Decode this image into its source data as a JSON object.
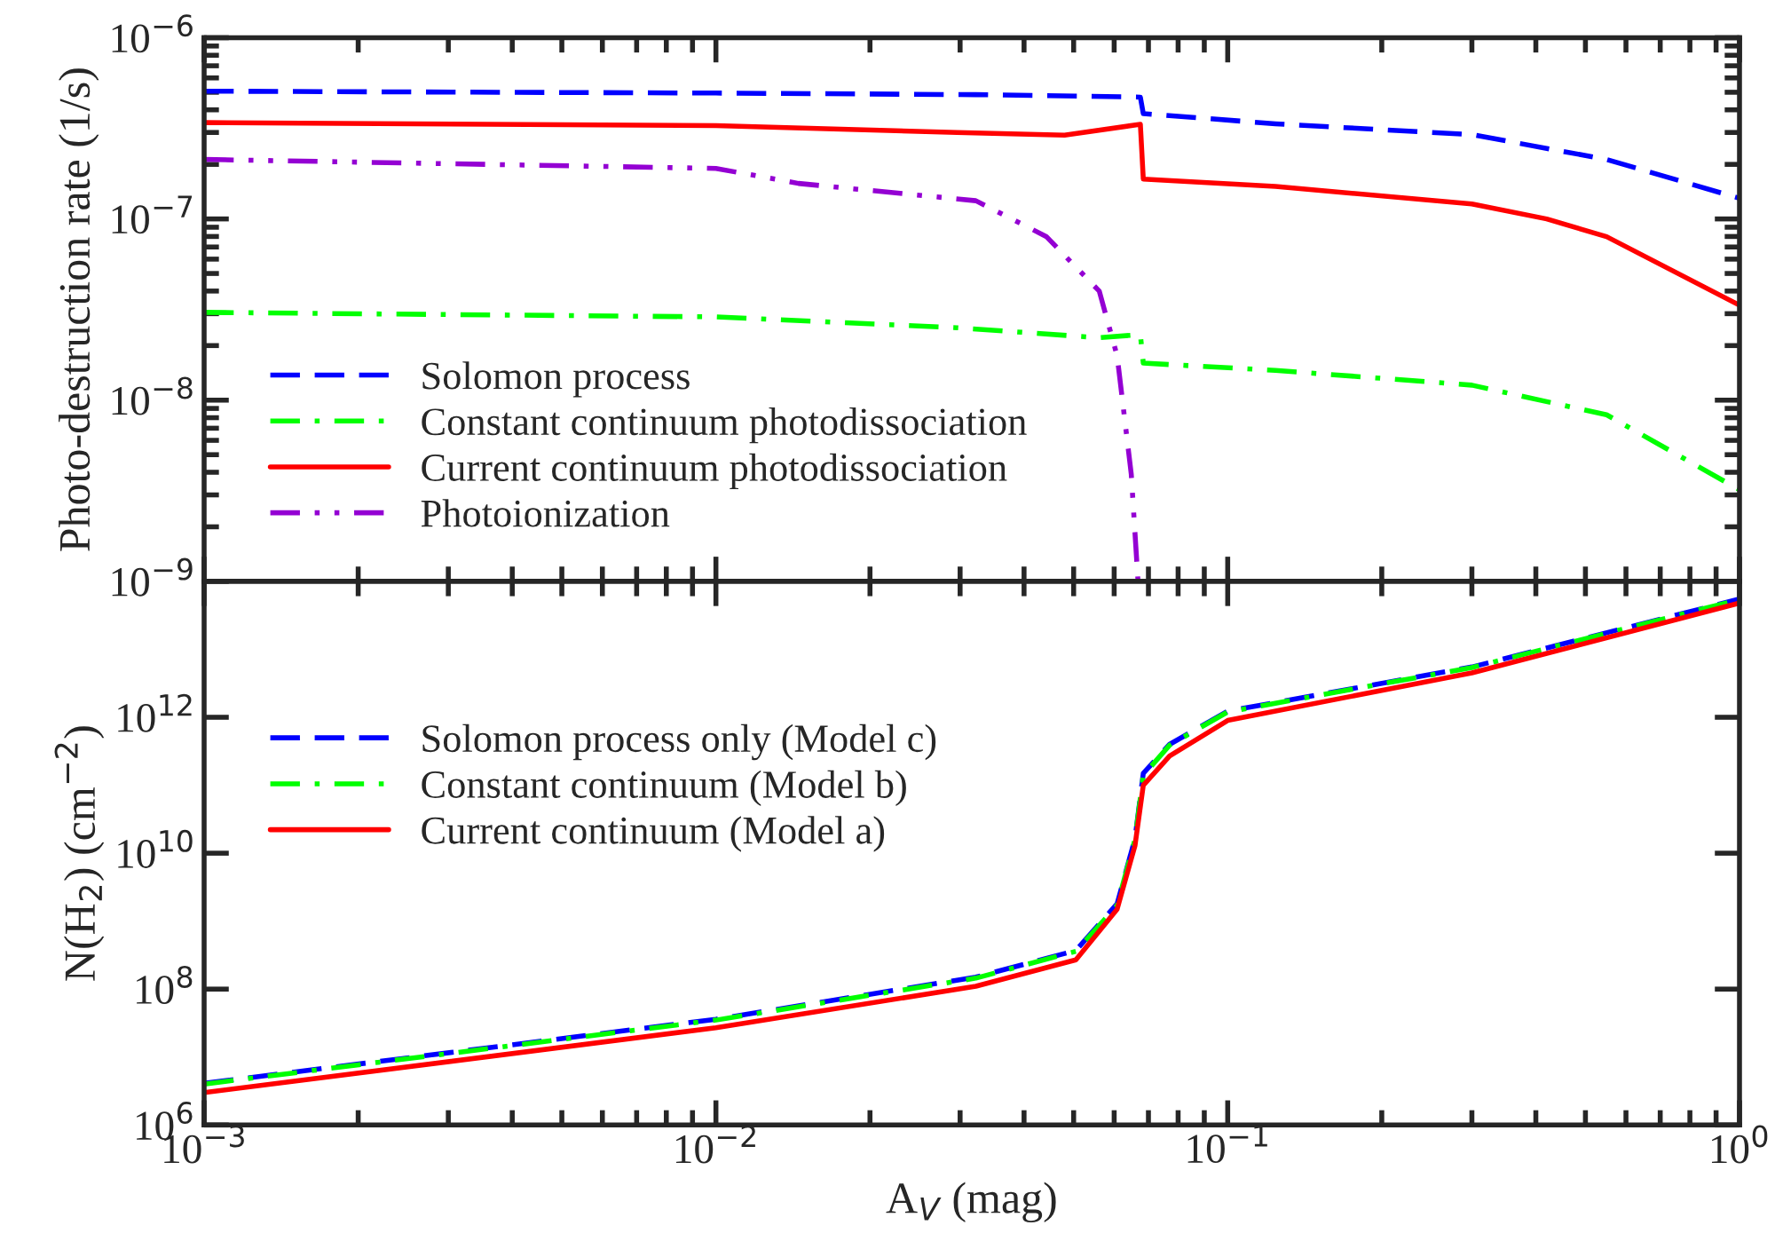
{
  "chart_data": [
    {
      "type": "line",
      "ylabel": "Photo-destruction rate (1/s)",
      "log": "xy",
      "xlim": [
        0.001,
        1
      ],
      "ylim": [
        1e-09,
        1e-06
      ],
      "xticks": [
        {
          "value": 0.001,
          "label": null
        },
        {
          "value": 0.01,
          "label": null
        },
        {
          "value": 0.1,
          "label": null
        },
        {
          "value": 1,
          "label": null
        }
      ],
      "yticks": [
        {
          "value": 1e-09,
          "label": "10$^{−9}$"
        },
        {
          "value": 1e-08,
          "label": "10$^{−8}$"
        },
        {
          "value": 1e-07,
          "label": "10$^{−7}$"
        },
        {
          "value": 1e-06,
          "label": "10$^{−6}$"
        }
      ],
      "tick_labels": "y",
      "legend": "bottom left",
      "grid": false,
      "series": [
        {
          "name": "Solomon process",
          "color": "#0000ff",
          "line_style": "dashed",
          "x": [
            0.001,
            0.01,
            0.0322,
            0.0675,
            0.0684,
            0.124,
            0.3,
            0.55,
            1.0
          ],
          "values": [
            5.07e-07,
            4.95e-07,
            4.85e-07,
            4.7e-07,
            3.81e-07,
            3.35e-07,
            2.92e-07,
            2.13e-07,
            1.3e-07
          ]
        },
        {
          "name": "Constant continuum photodissociation",
          "color": "#00ff00",
          "line_style": "dashdot",
          "x": [
            0.001,
            0.01,
            0.0296,
            0.056,
            0.0675,
            0.0684,
            0.124,
            0.3,
            0.55,
            1.0
          ],
          "values": [
            3.05e-08,
            2.88e-08,
            2.51e-08,
            2.21e-08,
            2.3e-08,
            1.6e-08,
            1.46e-08,
            1.21e-08,
            8.3e-09,
            3.2e-09
          ]
        },
        {
          "name": "Current continuum photodissociation",
          "color": "#ff0000",
          "line_style": "solid",
          "x": [
            0.001,
            0.01,
            0.0296,
            0.048,
            0.0675,
            0.0684,
            0.124,
            0.3,
            0.42,
            0.55,
            1.0
          ],
          "values": [
            3.4e-07,
            3.27e-07,
            3e-07,
            2.9e-07,
            3.33e-07,
            1.66e-07,
            1.51e-07,
            1.21e-07,
            1e-07,
            7.98e-08,
            3.34e-08
          ]
        },
        {
          "name": "Photoionization",
          "color": "#9400d3",
          "line_style": "dashdotdot",
          "x": [
            0.001,
            0.01,
            0.0145,
            0.0322,
            0.0442,
            0.0561,
            0.0608,
            0.0648,
            0.0668
          ],
          "values": [
            2.13e-07,
            1.9e-07,
            1.57e-07,
            1.26e-07,
            8e-08,
            4e-08,
            1.76e-08,
            3.9e-09,
            1e-09
          ]
        }
      ]
    },
    {
      "type": "line",
      "xlabel": "A$_{V}$ (mag)",
      "ylabel": "N(H$_{2}$) (cm$^{−2}$)",
      "log": "xy",
      "xlim": [
        0.001,
        1
      ],
      "ylim": [
        1000000.0,
        100000000000000.0
      ],
      "xticks": [
        {
          "value": 0.001,
          "label": "10$^{−3}$"
        },
        {
          "value": 0.01,
          "label": "10$^{−2}$"
        },
        {
          "value": 0.1,
          "label": "10$^{−1}$"
        },
        {
          "value": 1,
          "label": "10$^{0}$"
        }
      ],
      "yticks": [
        {
          "value": 1000000.0,
          "label": "10$^{6}$"
        },
        {
          "value": 100000000.0,
          "label": "10$^{8}$"
        },
        {
          "value": 10000000000.0,
          "label": "10$^{10}$"
        },
        {
          "value": 1000000000000.0,
          "label": "10$^{12}$"
        },
        {
          "value": 100000000000000.0,
          "label": null
        }
      ],
      "legend": "left",
      "grid": false,
      "series": [
        {
          "name": "Solomon process only (Model c)",
          "color": "#0000ff",
          "line_style": "dashed",
          "x": [
            0.001,
            0.01,
            0.0322,
            0.0505,
            0.0608,
            0.0659,
            0.0684,
            0.077,
            0.1,
            0.3,
            1.0
          ],
          "values": [
            4100000.0,
            36000000.0,
            150000000.0,
            370000000.0,
            1800000000.0,
            16500000000.0,
            150000000000.0,
            400000000000.0,
            1230000000000.0,
            5500000000000.0,
            55000000000000.0
          ]
        },
        {
          "name": "Constant continuum (Model b)",
          "color": "#00ff00",
          "line_style": "dashdot",
          "x": [
            0.001,
            0.01,
            0.0322,
            0.0505,
            0.0608,
            0.0659,
            0.0684,
            0.077,
            0.1,
            0.3,
            1.0
          ],
          "values": [
            4000000.0,
            35000000.0,
            145000000.0,
            360000000.0,
            1700000000.0,
            16000000000.0,
            140000000000.0,
            390000000000.0,
            1200000000000.0,
            5400000000000.0,
            54000000000000.0
          ]
        },
        {
          "name": "Current continuum (Model a)",
          "color": "#ff0000",
          "line_style": "solid",
          "x": [
            0.001,
            0.01,
            0.0322,
            0.0505,
            0.0608,
            0.0659,
            0.0684,
            0.077,
            0.1,
            0.3,
            1.0
          ],
          "values": [
            3000000.0,
            27000000.0,
            110000000.0,
            270000000.0,
            1500000000.0,
            13000000000.0,
            100000000000.0,
            270000000000.0,
            900000000000.0,
            4500000000000.0,
            48000000000000.0
          ]
        }
      ]
    }
  ]
}
